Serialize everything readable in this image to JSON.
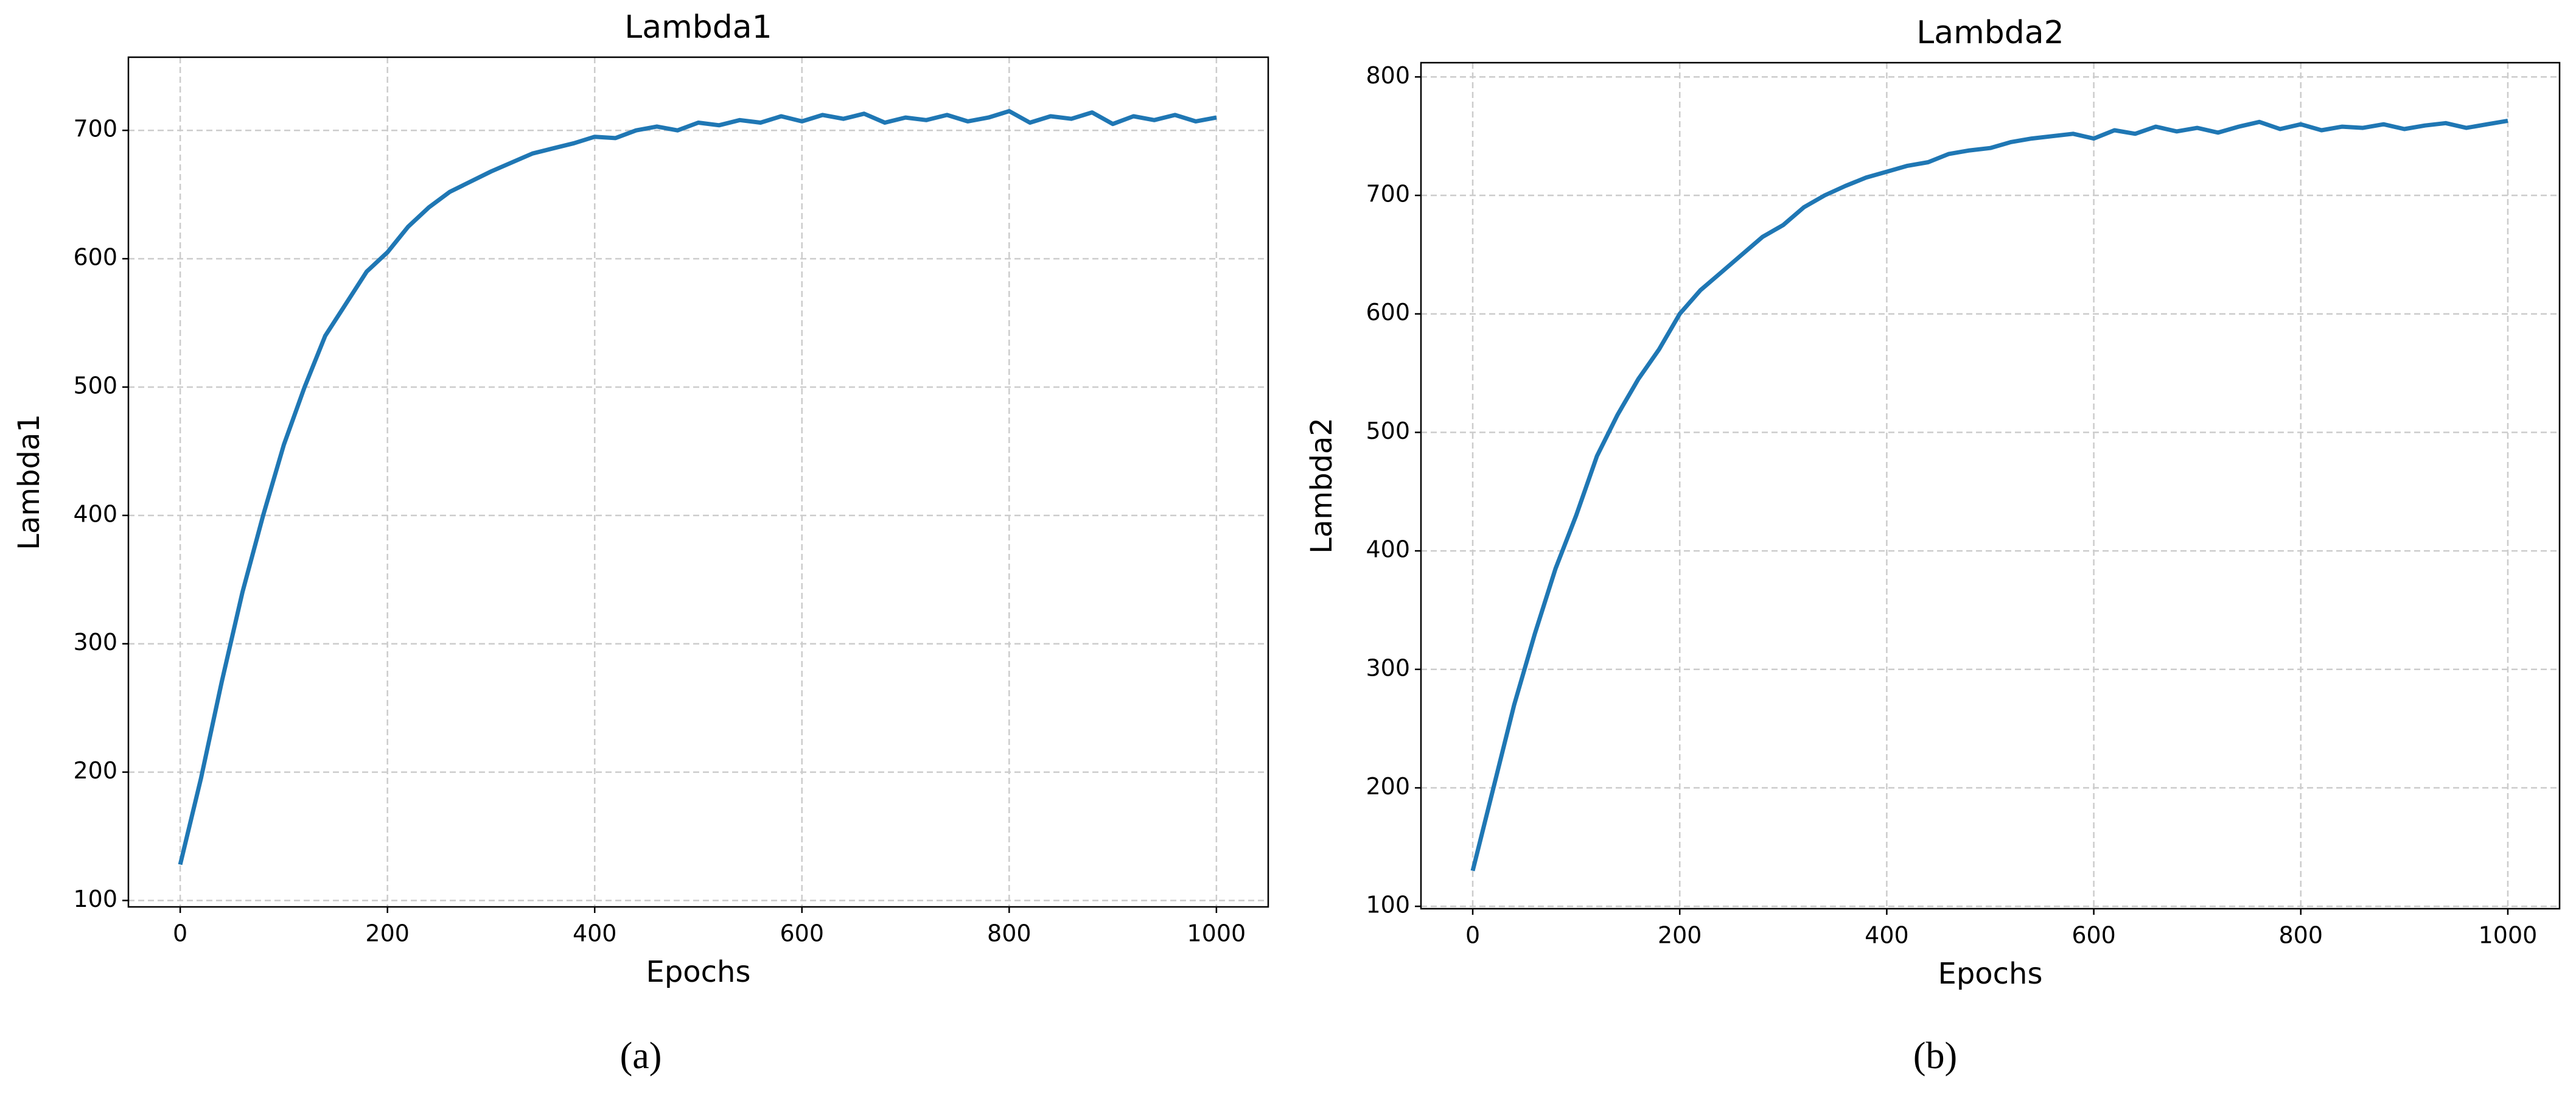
{
  "chart_data": [
    {
      "type": "line",
      "title": "Lambda1",
      "xlabel": "Epochs",
      "ylabel": "Lambda1",
      "caption": "(a)",
      "color": "#1f77b4",
      "grid": true,
      "x": [
        0,
        20,
        40,
        60,
        80,
        100,
        120,
        140,
        160,
        180,
        200,
        220,
        240,
        260,
        280,
        300,
        320,
        340,
        360,
        380,
        400,
        420,
        440,
        460,
        480,
        500,
        520,
        540,
        560,
        580,
        600,
        620,
        640,
        660,
        680,
        700,
        720,
        740,
        760,
        780,
        800,
        820,
        840,
        860,
        880,
        900,
        920,
        940,
        960,
        980,
        1000
      ],
      "values": [
        128,
        195,
        270,
        340,
        400,
        455,
        500,
        540,
        565,
        590,
        605,
        625,
        640,
        652,
        660,
        668,
        675,
        682,
        686,
        690,
        695,
        694,
        700,
        703,
        700,
        706,
        704,
        708,
        706,
        711,
        707,
        712,
        709,
        713,
        706,
        710,
        708,
        712,
        707,
        710,
        715,
        706,
        711,
        709,
        714,
        705,
        711,
        708,
        712,
        707,
        710
      ],
      "xlim": [
        -50,
        1050
      ],
      "xticks": [
        0,
        200,
        400,
        600,
        800,
        1000
      ],
      "ylim": [
        95,
        757
      ],
      "yticks": [
        100,
        200,
        300,
        400,
        500,
        600,
        700
      ]
    },
    {
      "type": "line",
      "title": "Lambda2",
      "xlabel": "Epochs",
      "ylabel": "Lambda2",
      "caption": "(b)",
      "color": "#1f77b4",
      "grid": true,
      "x": [
        0,
        20,
        40,
        60,
        80,
        100,
        120,
        140,
        160,
        180,
        200,
        220,
        240,
        260,
        280,
        300,
        320,
        340,
        360,
        380,
        400,
        420,
        440,
        460,
        480,
        500,
        520,
        540,
        560,
        580,
        600,
        620,
        640,
        660,
        680,
        700,
        720,
        740,
        760,
        780,
        800,
        820,
        840,
        860,
        880,
        900,
        920,
        940,
        960,
        980,
        1000
      ],
      "values": [
        130,
        200,
        270,
        330,
        385,
        430,
        480,
        515,
        545,
        570,
        600,
        620,
        635,
        650,
        665,
        675,
        690,
        700,
        708,
        715,
        720,
        725,
        728,
        735,
        738,
        740,
        745,
        748,
        750,
        752,
        748,
        755,
        752,
        758,
        754,
        757,
        753,
        758,
        762,
        756,
        760,
        755,
        758,
        757,
        760,
        756,
        759,
        761,
        757,
        760,
        763
      ],
      "xlim": [
        -50,
        1050
      ],
      "xticks": [
        0,
        200,
        400,
        600,
        800,
        1000
      ],
      "ylim": [
        98,
        812
      ],
      "yticks": [
        100,
        200,
        300,
        400,
        500,
        600,
        700,
        800
      ]
    }
  ]
}
